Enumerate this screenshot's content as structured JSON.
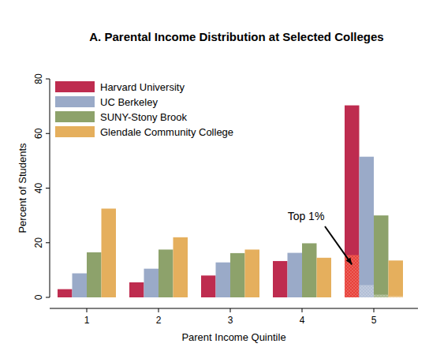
{
  "chart_data": {
    "type": "bar",
    "title": "A. Parental Income Distribution at Selected Colleges",
    "x_label": "Parent Income Quintile",
    "y_label": "Percent of Students",
    "categories": [
      "1",
      "2",
      "3",
      "4",
      "5"
    ],
    "series": [
      {
        "name": "Harvard University",
        "color": "#be2c4f",
        "values": [
          3,
          5.5,
          8,
          13.3,
          70.3
        ],
        "top_1_percent": 15.5
      },
      {
        "name": "UC Berkeley",
        "color": "#9aaac8",
        "values": [
          8.8,
          10.5,
          12.8,
          16.3,
          51.5
        ],
        "top_1_percent": 4.5
      },
      {
        "name": "SUNY-Stony Brook",
        "color": "#8da26b",
        "values": [
          16.5,
          17.5,
          16.2,
          19.8,
          30
        ],
        "top_1_percent": 1
      },
      {
        "name": "Glendale Community College",
        "color": "#e5af5d",
        "values": [
          32.5,
          22,
          17.5,
          14.5,
          13.5
        ],
        "top_1_percent": 0.5
      }
    ],
    "annotation": "Top 1%",
    "ylim": [
      0,
      80
    ],
    "yticks": [
      0,
      20,
      40,
      60,
      80
    ],
    "grid": false,
    "legend": "top-left"
  }
}
